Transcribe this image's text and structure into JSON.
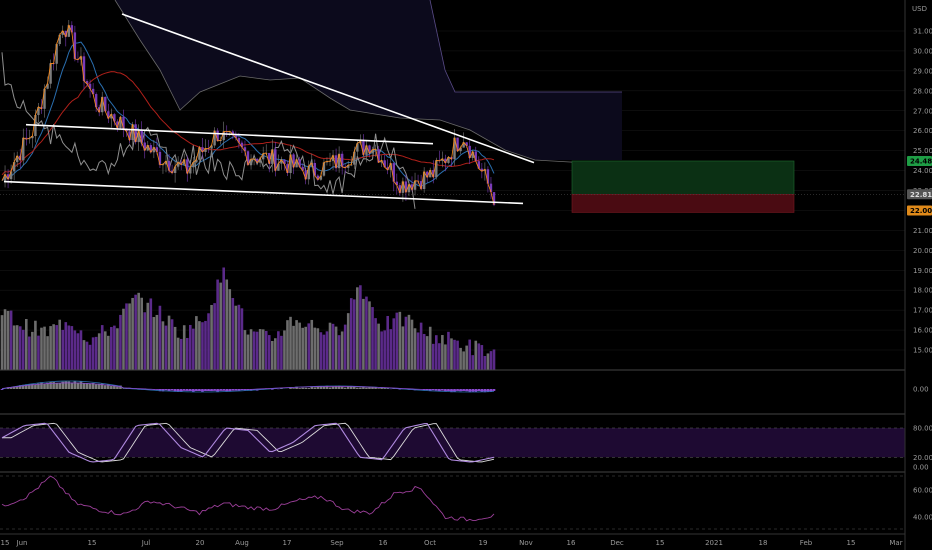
{
  "currency": "USD",
  "colors": {
    "background": "#000000",
    "grid": "#1a1a1a",
    "axis_text": "#9a9a9a",
    "candle_up": "#7d7d7d",
    "candle_down": "#7a3bb8",
    "orange_line": "#ff8c1a",
    "ichimoku_red": "#b0201a",
    "ichimoku_blue": "#2a6fb0",
    "chikou_gray": "#8f8f8f",
    "cloud_fill": "#0c0a1c",
    "cloud_border": "#5a4c88",
    "trendline": "#ffffff",
    "profit_zone": "#0b3014",
    "loss_zone": "#4a0b12",
    "tag_green": "#1e9d45",
    "tag_orange": "#e08a1a",
    "tag_gray": "#555555",
    "stoch_band": "#1e0a32",
    "stoch_line": "#b08ae0",
    "stoch_signal": "#dcdcdc",
    "rsi_line": "#9c3f9a"
  },
  "price_axis": {
    "ticks": [
      "31.00",
      "30.00",
      "29.00",
      "28.00",
      "27.00",
      "26.00",
      "25.00",
      "24.00",
      "23.00",
      "22.00",
      "21.00",
      "20.00",
      "19.00",
      "18.00",
      "17.00",
      "16.00",
      "15.00"
    ],
    "tick_values": [
      31,
      30,
      29,
      28,
      27,
      26,
      25,
      24,
      23,
      22,
      21,
      20,
      19,
      18,
      17,
      16,
      15
    ]
  },
  "price_tags": [
    {
      "label": "24.48",
      "value": 24.48,
      "style": "green"
    },
    {
      "label": "22.81",
      "value": 22.81,
      "style": "gray"
    },
    {
      "label": "22.00",
      "value": 22.0,
      "style": "orange"
    }
  ],
  "time_axis": {
    "labels": [
      "15",
      "Jun",
      "15",
      "Jul",
      "20",
      "Aug",
      "17",
      "Sep",
      "16",
      "Oct",
      "19",
      "Nov",
      "16",
      "Dec",
      "15",
      "2021",
      "18",
      "Feb",
      "15",
      "Mar"
    ]
  },
  "macd_axis": {
    "ticks": [
      "0.00"
    ],
    "tick_values": [
      0
    ]
  },
  "stoch_axis": {
    "ticks": [
      "80.00",
      "20.00",
      "0.00"
    ],
    "tick_values": [
      80,
      20,
      0
    ],
    "upper_band": 80,
    "lower_band": 20
  },
  "rsi_axis": {
    "ticks": [
      "60.00",
      "40.00"
    ],
    "tick_values": [
      60,
      40
    ]
  },
  "chart_data": {
    "type": "line",
    "price_range": [
      14.5,
      31.9
    ],
    "price_series_sample": [
      {
        "period": "mid May",
        "price": 23.5
      },
      {
        "period": "late May",
        "price": 26.0
      },
      {
        "period": "early Jun",
        "price": 31.5
      },
      {
        "period": "mid Jun",
        "price": 27.5
      },
      {
        "period": "late Jun",
        "price": 26.2
      },
      {
        "period": "early Jul",
        "price": 24.8
      },
      {
        "period": "mid Jul",
        "price": 24.0
      },
      {
        "period": "late Jul",
        "price": 25.9
      },
      {
        "period": "early Aug",
        "price": 24.8
      },
      {
        "period": "mid Aug",
        "price": 24.5
      },
      {
        "period": "late Aug",
        "price": 23.9
      },
      {
        "period": "early Sep",
        "price": 24.5
      },
      {
        "period": "mid Sep",
        "price": 25.4
      },
      {
        "period": "late Sep",
        "price": 23.3
      },
      {
        "period": "early Oct",
        "price": 23.8
      },
      {
        "period": "mid Oct",
        "price": 25.8
      },
      {
        "period": "late Oct",
        "price": 22.7
      }
    ],
    "trendlines": [
      {
        "name": "descending resistance",
        "from": 31.9,
        "to": 24.6
      },
      {
        "name": "channel upper",
        "from": 26.3,
        "to": 25.4
      },
      {
        "name": "channel lower",
        "from": 23.5,
        "to": 22.5
      }
    ],
    "position": {
      "target": 24.48,
      "entry": 22.81,
      "stop": 22.0
    },
    "volume_sample": [
      18,
      16,
      15,
      17,
      14,
      16,
      20,
      18,
      15,
      17,
      24,
      15,
      14,
      17,
      16,
      15,
      22,
      16,
      17,
      15,
      14,
      13,
      12
    ],
    "stochastic_sample": [
      60,
      85,
      90,
      30,
      10,
      15,
      85,
      90,
      40,
      20,
      80,
      75,
      30,
      50,
      85,
      90,
      20,
      15,
      80,
      90,
      15,
      10,
      20
    ],
    "rsi_sample": [
      48,
      55,
      70,
      50,
      45,
      42,
      52,
      48,
      43,
      50,
      47,
      46,
      52,
      55,
      45,
      43,
      58,
      62,
      40,
      38,
      41
    ]
  }
}
